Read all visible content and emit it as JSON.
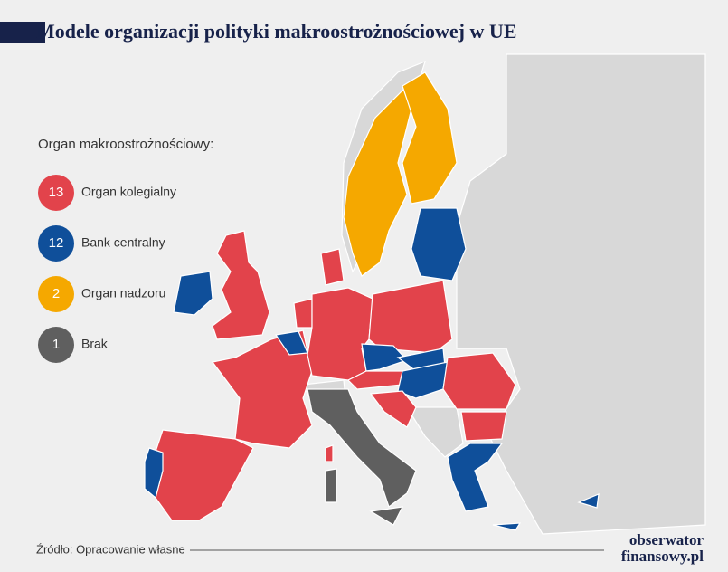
{
  "title": "Modele organizacji polityki makroostrożnościowej w UE",
  "legend": {
    "title": "Organ makroostrożnościowy:",
    "items": [
      {
        "count": 13,
        "label": "Organ kolegialny",
        "color": "#e2434b"
      },
      {
        "count": 12,
        "label": "Bank centralny",
        "color": "#0f4f9a"
      },
      {
        "count": 2,
        "label": "Organ nadzoru",
        "color": "#f5a800"
      },
      {
        "count": 1,
        "label": "Brak",
        "color": "#5f5f5f"
      }
    ]
  },
  "source": "Źródło: Opracowanie własne",
  "brand": {
    "line1": "obserwator",
    "line2": "finansowy.pl"
  }
}
